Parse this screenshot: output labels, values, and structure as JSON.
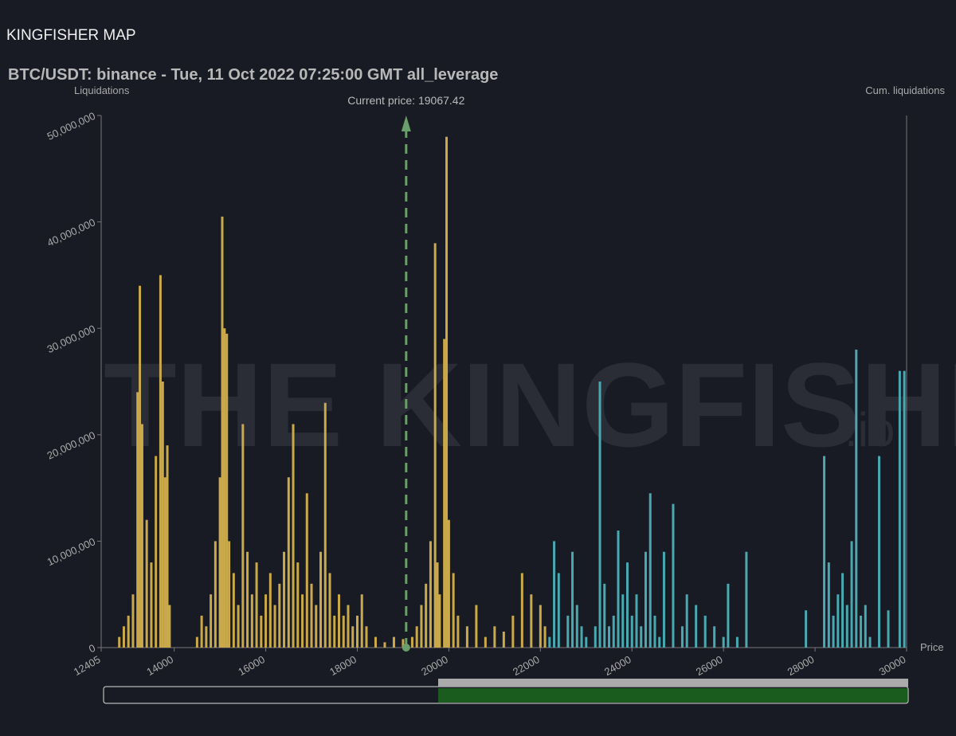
{
  "header": "KINGFISHER MAP",
  "watermark": [
    "THE KINGFISHER",
    ".io"
  ],
  "chart_data": {
    "type": "bar",
    "title": "BTC/USDT: binance - Tue, 11 Oct 2022 07:25:00 GMT all_leverage",
    "y_label": "Liquidations",
    "y2_label": "Cum. liquidations",
    "x_label": "Price",
    "annotation": {
      "value": 19067.42,
      "label": "Current price: 19067.42",
      "color": "#6a9e6a"
    },
    "xlim": [
      12405,
      30000
    ],
    "xticks": [
      12405,
      14000,
      16000,
      18000,
      20000,
      22000,
      24000,
      26000,
      28000,
      30000
    ],
    "ylim": [
      0,
      50000000
    ],
    "yticks": [
      0,
      {
        "value": 10000000,
        "label": "10,000,000"
      },
      {
        "value": 20000000,
        "label": "20,000,000"
      },
      {
        "value": 30000000,
        "label": "30,000,000"
      },
      {
        "value": 40000000,
        "label": "40,000,000"
      },
      {
        "value": 50000000,
        "label": "50,000,000"
      }
    ],
    "series": [
      {
        "color": "#c9a94a",
        "x": [
          12800,
          12900,
          13000,
          13100,
          13200,
          13250,
          13300,
          13400,
          13500,
          13600,
          13700,
          13750,
          13800,
          13850,
          13900,
          14500,
          14600,
          14700,
          14800,
          14900,
          15000,
          15050,
          15100,
          15150,
          15200,
          15300,
          15400,
          15500,
          15600,
          15700,
          15800,
          15900,
          16000,
          16100,
          16200,
          16300,
          16400,
          16500,
          16600,
          16700,
          16800,
          16900,
          17000,
          17100,
          17200,
          17300,
          17400,
          17500,
          17600,
          17700,
          17800,
          17900,
          18000,
          18100,
          18200,
          18400,
          18600,
          18800,
          19000,
          19200,
          19300,
          19400,
          19500,
          19600,
          19700,
          19750,
          19800,
          19900,
          19950,
          20000,
          20100,
          20200,
          20400,
          20600,
          20800,
          21000,
          21200,
          21400,
          21600,
          21800,
          22000,
          22100
        ],
        "values": [
          1000000,
          2000000,
          3000000,
          5000000,
          24000000,
          34000000,
          21000000,
          12000000,
          8000000,
          18000000,
          35000000,
          25000000,
          16000000,
          19000000,
          4000000,
          1000000,
          3000000,
          2000000,
          5000000,
          10000000,
          16000000,
          40500000,
          30000000,
          29500000,
          10000000,
          7000000,
          4000000,
          21000000,
          9000000,
          5000000,
          8000000,
          3000000,
          5000000,
          7000000,
          4000000,
          6000000,
          9000000,
          16000000,
          21000000,
          8000000,
          5000000,
          14500000,
          6000000,
          4000000,
          9000000,
          23000000,
          7000000,
          3000000,
          5000000,
          3000000,
          4000000,
          2000000,
          3000000,
          5000000,
          2000000,
          1000000,
          500000,
          1000000,
          800000,
          1000000,
          2000000,
          4000000,
          6000000,
          10000000,
          38000000,
          8000000,
          5000000,
          29000000,
          48000000,
          12000000,
          7000000,
          3000000,
          2000000,
          4000000,
          1000000,
          2000000,
          1500000,
          3000000,
          7000000,
          5000000,
          4000000,
          2000000
        ]
      },
      {
        "color": "#4aa8b0",
        "x": [
          22200,
          22300,
          22400,
          22600,
          22700,
          22800,
          22900,
          23000,
          23200,
          23300,
          23400,
          23500,
          23600,
          23700,
          23800,
          23900,
          24000,
          24100,
          24200,
          24300,
          24400,
          24500,
          24600,
          24700,
          24900,
          25100,
          25200,
          25400,
          25600,
          25800,
          26000,
          26100,
          26300,
          26500,
          27800,
          28200,
          28300,
          28400,
          28500,
          28600,
          28700,
          28800,
          28900,
          29000,
          29100,
          29200,
          29400,
          29600,
          29850,
          29950
        ],
        "values": [
          1000000,
          10000000,
          7000000,
          3000000,
          9000000,
          4000000,
          2000000,
          1000000,
          2000000,
          25000000,
          6000000,
          2000000,
          3000000,
          11000000,
          5000000,
          8000000,
          3000000,
          5000000,
          2000000,
          9000000,
          14500000,
          3000000,
          1000000,
          9000000,
          13500000,
          2000000,
          5000000,
          4000000,
          3000000,
          2000000,
          1000000,
          6000000,
          1000000,
          9000000,
          3500000,
          18000000,
          8000000,
          3000000,
          5000000,
          7000000,
          4000000,
          10000000,
          28000000,
          3000000,
          4000000,
          1000000,
          18000000,
          3500000,
          26000000,
          26000000
        ]
      }
    ]
  }
}
